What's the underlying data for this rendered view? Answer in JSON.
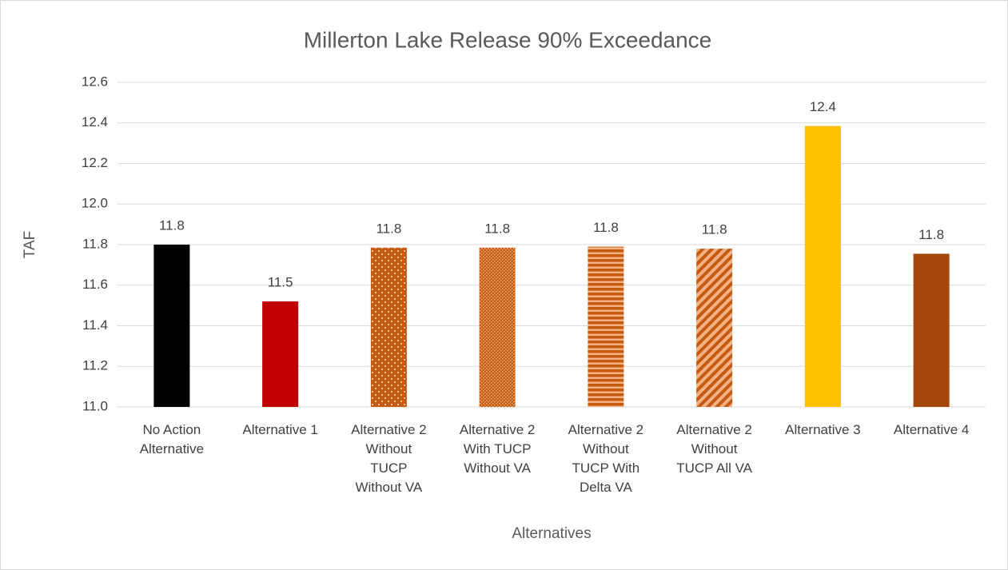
{
  "chart_data": {
    "type": "bar",
    "title": "Millerton Lake Release 90% Exceedance",
    "x_label": "Alternatives",
    "y_label": "TAF",
    "categories": [
      "No Action\nAlternative",
      "Alternative 1",
      "Alternative 2\nWithout\nTUCP\nWithout VA",
      "Alternative 2\nWith TUCP\nWithout VA",
      "Alternative 2\nWithout\nTUCP With\nDelta VA",
      "Alternative 2\nWithout\nTUCP All VA",
      "Alternative 3",
      "Alternative 4"
    ],
    "values": [
      11.8,
      11.52,
      11.785,
      11.785,
      11.79,
      11.78,
      12.385,
      11.755
    ],
    "value_labels": [
      "11.8",
      "11.5",
      "11.8",
      "11.8",
      "11.8",
      "11.8",
      "12.4",
      "11.8"
    ],
    "colors": [
      "#000000",
      "#c00000",
      "#c55a11",
      "#c55a11",
      "#c55a11",
      "#c55a11",
      "#ffc000",
      "#a5460a"
    ],
    "patterns": [
      "solid",
      "solid",
      "dots",
      "dense-dots",
      "horizontal-stripes",
      "diagonal-stripes",
      "solid",
      "solid"
    ],
    "ylim": [
      11.0,
      12.6
    ],
    "yticks": [
      {
        "value": 11.0,
        "label": "11.0"
      },
      11.2,
      11.4,
      11.6,
      11.8,
      {
        "value": 12.0,
        "label": "12.0"
      },
      12.2,
      12.4,
      12.6
    ],
    "grid": true
  }
}
